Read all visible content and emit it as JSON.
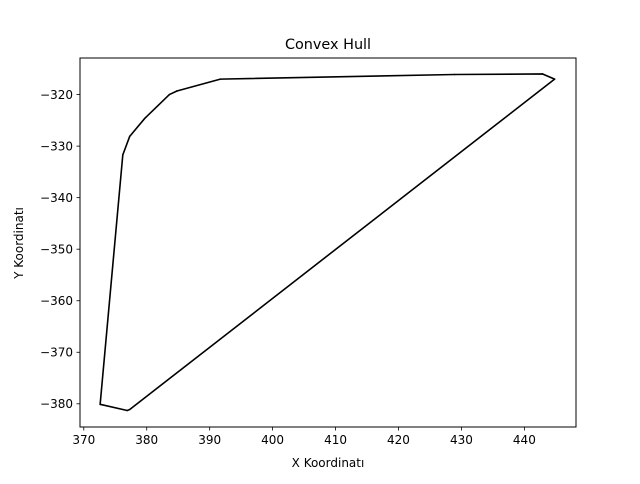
{
  "chart_data": {
    "type": "line",
    "title": "Convex Hull",
    "xlabel": "X Koordinatı",
    "ylabel": "Y Koordinatı",
    "xlim": [
      369.4,
      448.2
    ],
    "ylim": [
      -384.5,
      -312.9
    ],
    "xticks": [
      370,
      380,
      390,
      400,
      410,
      420,
      430,
      440
    ],
    "yticks": [
      -320,
      -330,
      -340,
      -350,
      -360,
      -370,
      -380
    ],
    "grid": false,
    "color": "#000000",
    "series": [
      {
        "name": "",
        "points": [
          [
            372.6,
            -380.1
          ],
          [
            376.9,
            -381.3
          ],
          [
            377.3,
            -381.1
          ],
          [
            444.8,
            -317.0
          ],
          [
            442.9,
            -316.0
          ],
          [
            428.9,
            -316.1
          ],
          [
            391.7,
            -317.0
          ],
          [
            384.8,
            -319.3
          ],
          [
            383.6,
            -320.0
          ],
          [
            379.7,
            -324.6
          ],
          [
            377.3,
            -328.1
          ],
          [
            376.2,
            -331.7
          ],
          [
            372.6,
            -380.1
          ]
        ]
      }
    ]
  }
}
